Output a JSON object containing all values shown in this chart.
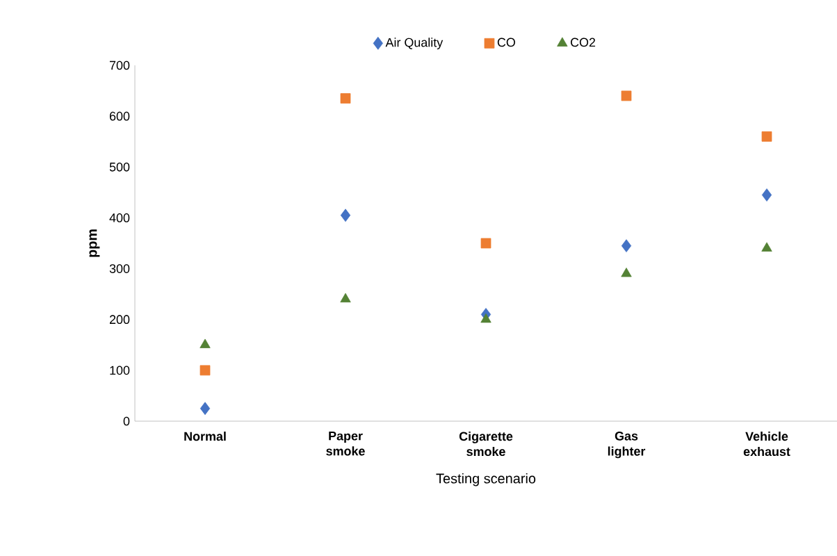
{
  "chart_data": {
    "type": "scatter",
    "xlabel": "Testing scenario",
    "ylabel": "ppm",
    "categories": [
      "Normal",
      "Paper smoke",
      "Cigarette smoke",
      "Gas lighter",
      "Vehicle exhaust"
    ],
    "series": [
      {
        "name": "Air Quality",
        "color": "#4472c4",
        "marker": "diamond",
        "values": [
          25,
          405,
          210,
          345,
          445
        ]
      },
      {
        "name": "CO",
        "color": "#ed7d31",
        "marker": "square",
        "values": [
          100,
          635,
          350,
          640,
          560
        ]
      },
      {
        "name": "CO2",
        "color": "#548235",
        "marker": "triangle",
        "values": [
          150,
          240,
          200,
          290,
          340
        ]
      }
    ],
    "ylim": [
      0,
      700
    ],
    "yticks": [
      0,
      100,
      200,
      300,
      400,
      500,
      600,
      700
    ],
    "grid": false,
    "legend": "top"
  }
}
